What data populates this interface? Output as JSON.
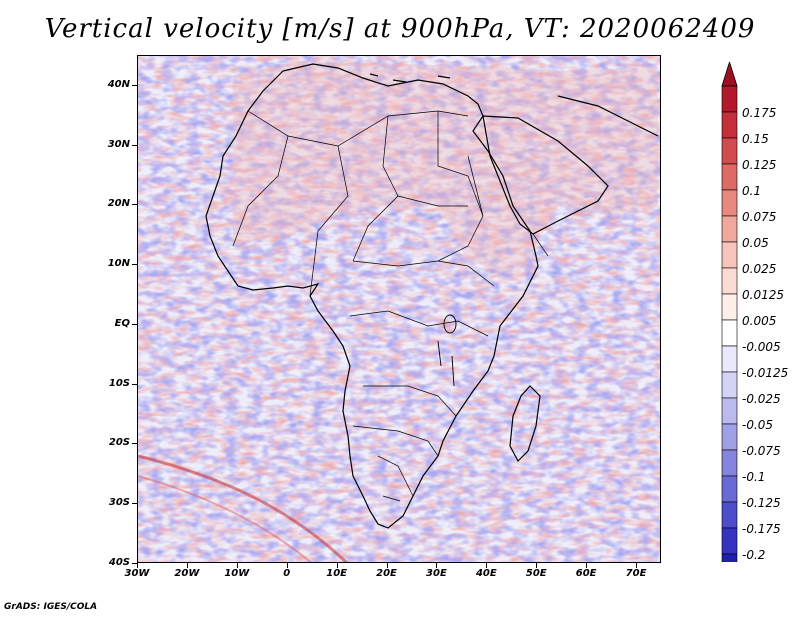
{
  "title": "Vertical velocity [m/s] at 900hPa, VT: 2020062409",
  "credit": "GrADS: IGES/COLA",
  "lat_labels": [
    "40N",
    "30N",
    "20N",
    "10N",
    "EQ",
    "10S",
    "20S",
    "30S",
    "40S"
  ],
  "lat_values": [
    40,
    30,
    20,
    10,
    0,
    -10,
    -20,
    -30,
    -40
  ],
  "lon_labels": [
    "30W",
    "20W",
    "10W",
    "0",
    "10E",
    "20E",
    "30E",
    "40E",
    "50E",
    "60E",
    "70E"
  ],
  "lon_values": [
    -30,
    -20,
    -10,
    0,
    10,
    20,
    30,
    40,
    50,
    60,
    70
  ],
  "domain": {
    "lon_min": -30,
    "lon_max": 75,
    "lat_min": -40,
    "lat_max": 45
  },
  "colorbar": {
    "labels": [
      "0.175",
      "0.15",
      "0.125",
      "0.1",
      "0.075",
      "0.05",
      "0.025",
      "0.0125",
      "0.005",
      "-0.005",
      "-0.0125",
      "-0.025",
      "-0.05",
      "-0.075",
      "-0.1",
      "-0.125",
      "-0.175",
      "-0.2"
    ],
    "colors": [
      "#b2182b",
      "#c32f3a",
      "#d24b4f",
      "#de6a66",
      "#e8887f",
      "#f0a79c",
      "#f6c4ba",
      "#fbdcd4",
      "#fdeeea",
      "#ffffff",
      "#e9e9fb",
      "#d3d3f5",
      "#babaee",
      "#a0a0e6",
      "#8585de",
      "#6a6ad5",
      "#4e4ecb",
      "#3434c0",
      "#1f1fae"
    ],
    "top_arrow_color": "#9e0f22",
    "bottom_arrow_color": "#10108c"
  },
  "field_colors": {
    "positive": "#d63a3a",
    "negative": "#4a4ad6",
    "ocean_base": "#ecebfa"
  }
}
